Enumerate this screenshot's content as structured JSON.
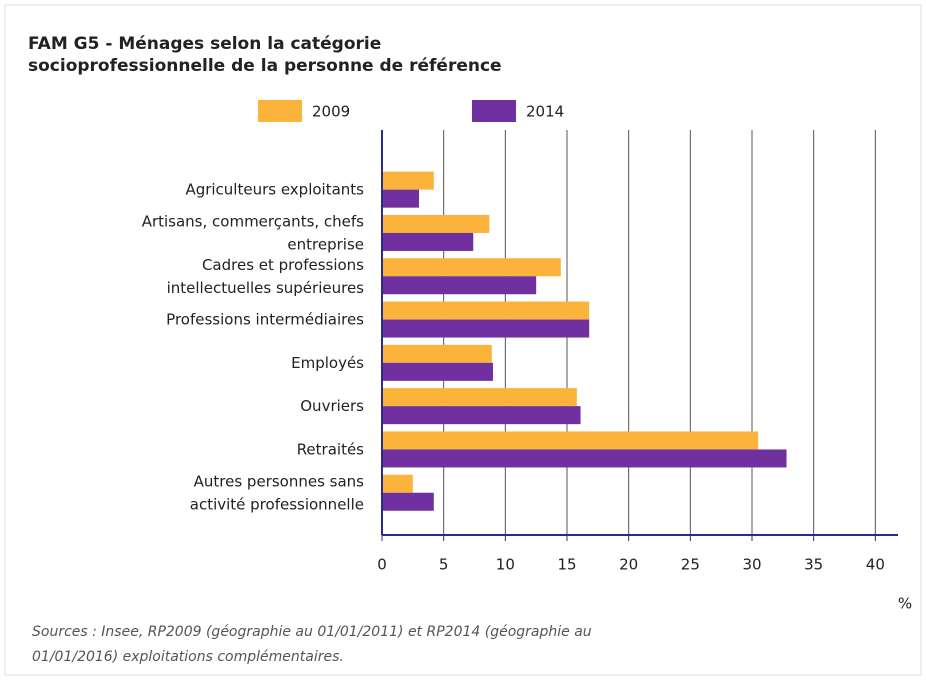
{
  "chart_data": {
    "type": "barh",
    "title": "FAM G5 - Ménages selon la catégorie socioprofessionnelle de la personne de référence",
    "categories": [
      "Agriculteurs exploitants",
      "Artisans, commerçants, chefs entreprise",
      "Cadres et professions intellectuelles supérieures",
      "Professions intermédiaires",
      "Employés",
      "Ouvriers",
      "Retraités",
      "Autres personnes sans activité professionnelle"
    ],
    "series": [
      {
        "name": "2009",
        "color": "#fbb33b",
        "values": [
          4.2,
          8.7,
          14.5,
          16.8,
          8.9,
          15.8,
          30.5,
          2.5
        ]
      },
      {
        "name": "2014",
        "color": "#7030a0",
        "values": [
          3.0,
          7.4,
          12.5,
          16.8,
          9.0,
          16.1,
          32.8,
          4.2
        ]
      }
    ],
    "xlim": [
      0,
      42
    ],
    "xticks": [
      0,
      5,
      10,
      15,
      20,
      25,
      30,
      35,
      40
    ],
    "grid": true,
    "xlabel": "%",
    "source": "Sources : Insee, RP2009 (géographie au 01/01/2011) et RP2014 (géographie au 01/01/2016) exploitations complémentaires."
  }
}
